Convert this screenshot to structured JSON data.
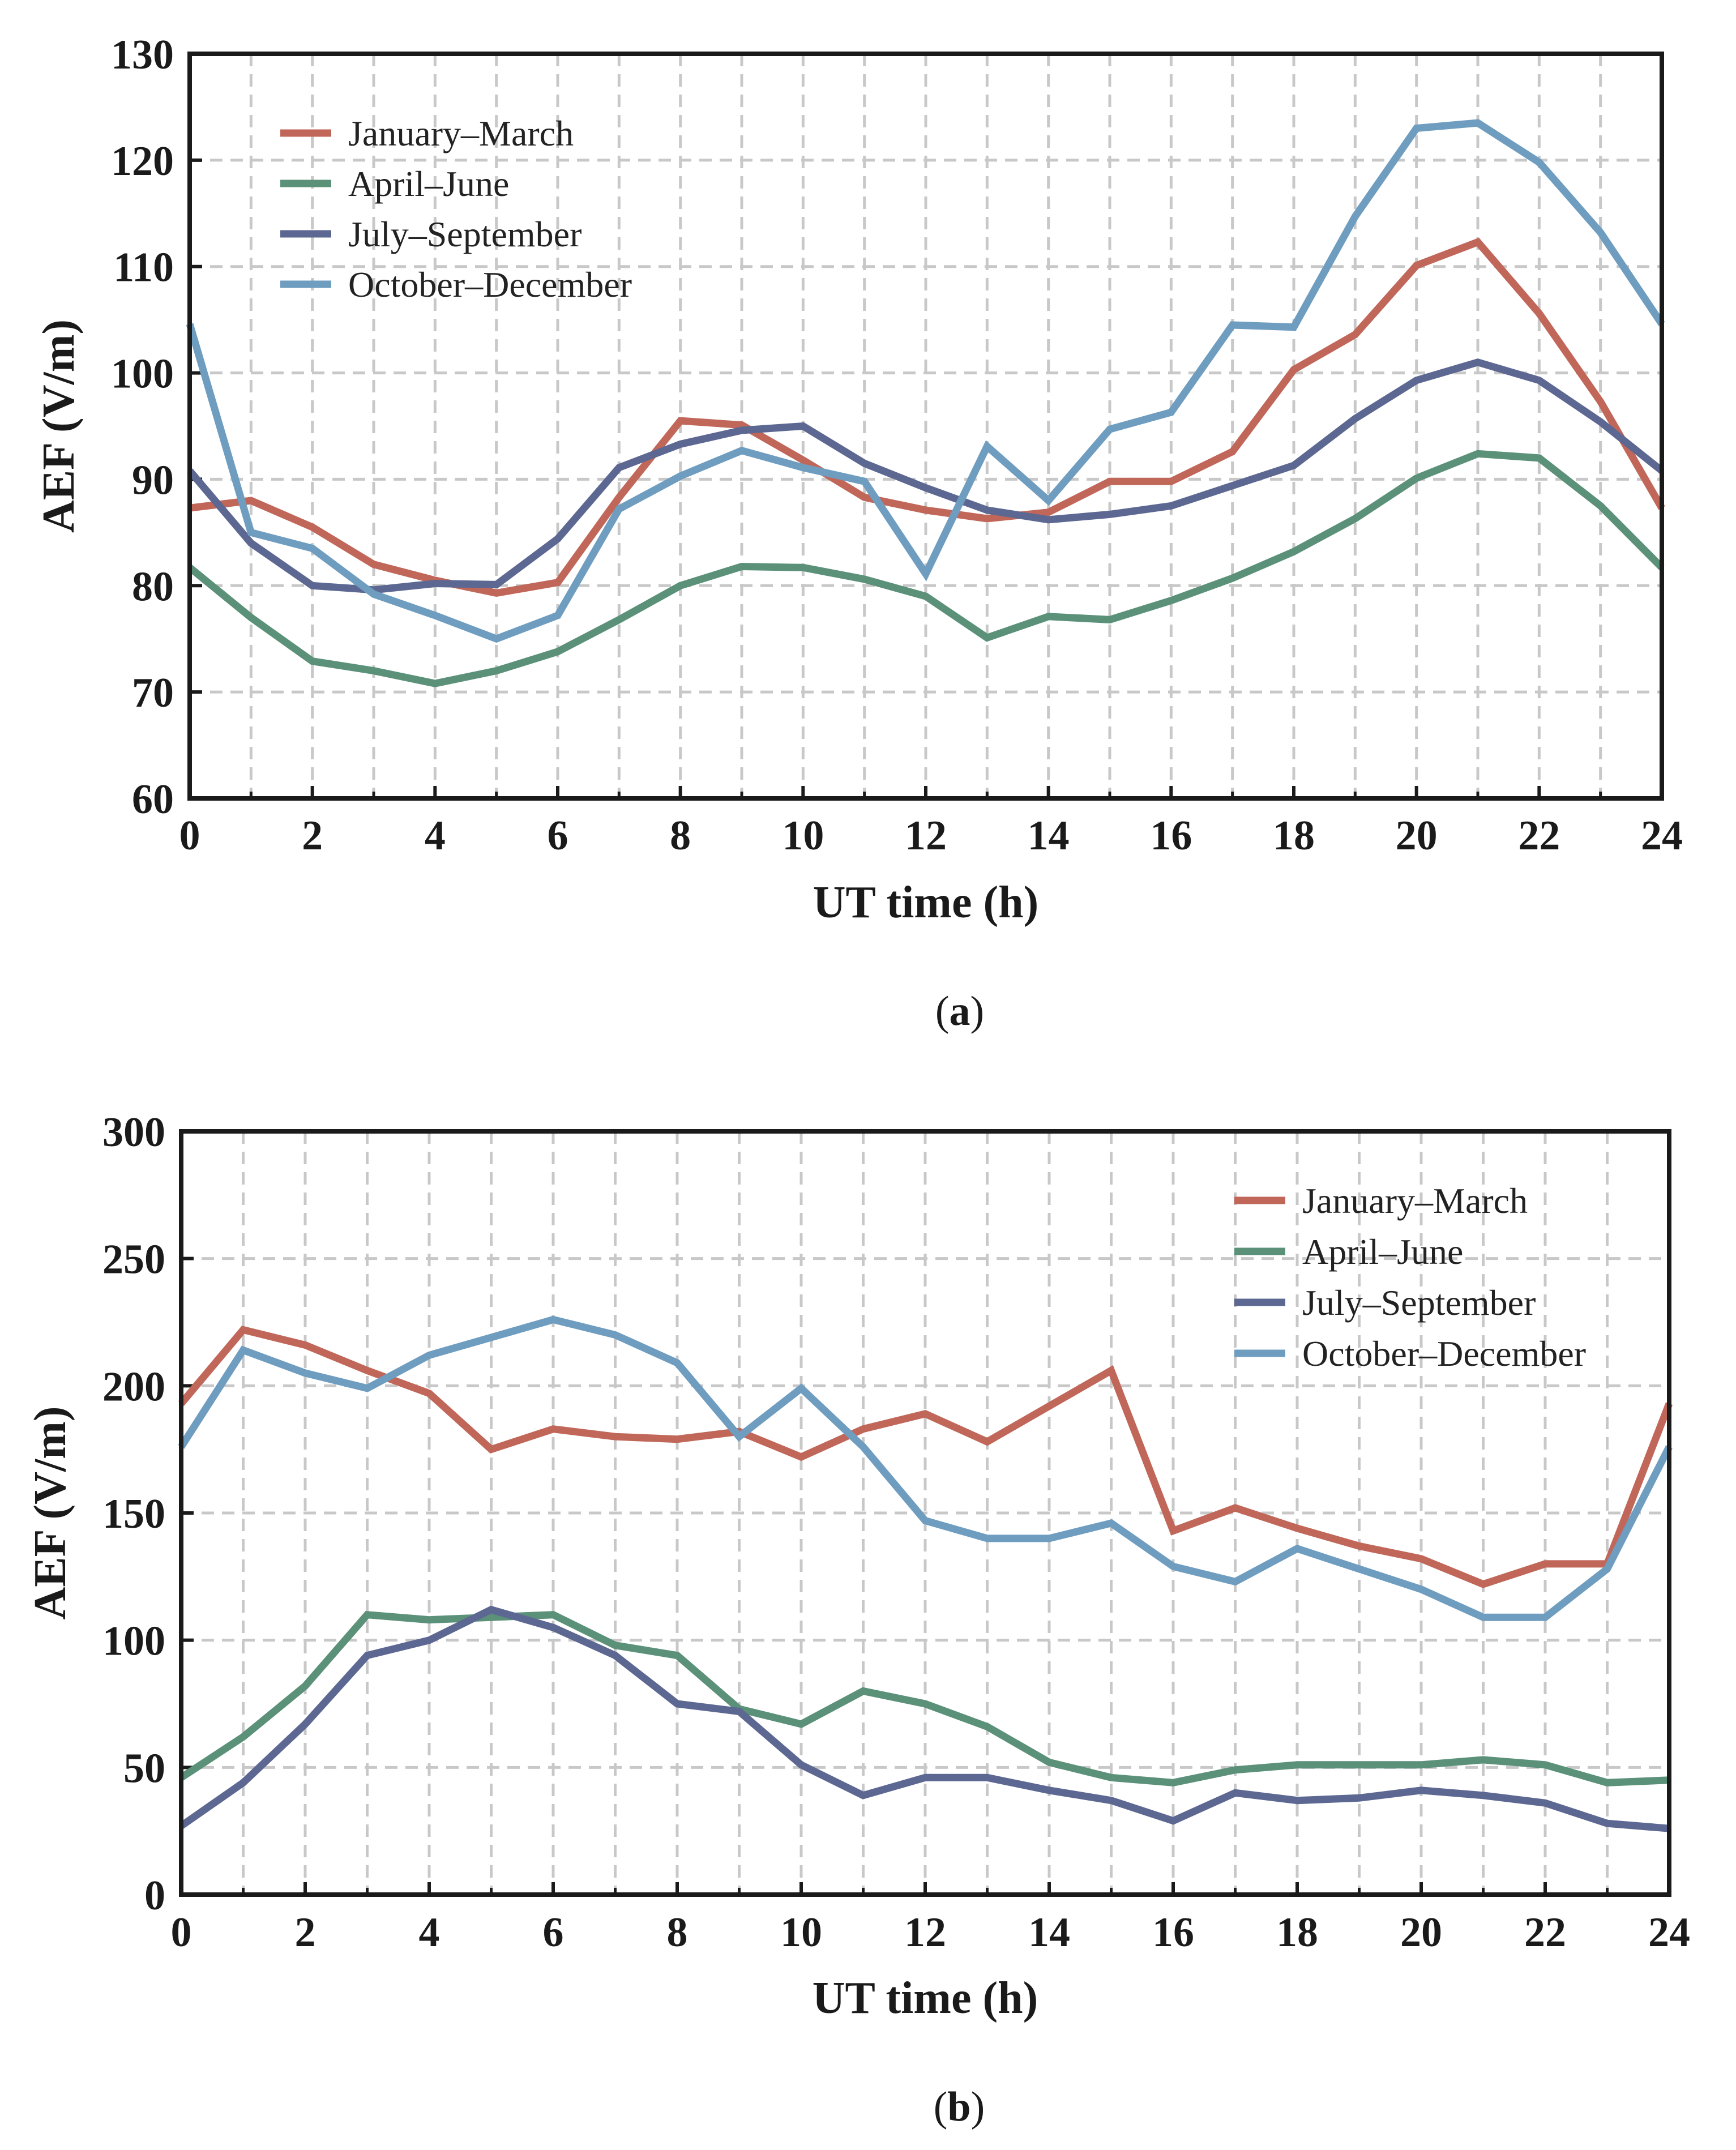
{
  "chart_data": [
    {
      "type": "line",
      "panel_label": "a",
      "caption_open": "(",
      "caption_close": ")",
      "xlabel": "UT time (h)",
      "ylabel": "AEF (V/m)",
      "xlim": [
        0,
        24
      ],
      "ylim": [
        60,
        130
      ],
      "xticks": [
        0,
        2,
        4,
        6,
        8,
        10,
        12,
        14,
        16,
        18,
        20,
        22,
        24
      ],
      "yticks": [
        60,
        70,
        80,
        90,
        100,
        110,
        120,
        130
      ],
      "grid": true,
      "legend_position": "top-left",
      "x": [
        0,
        1,
        2,
        3,
        4,
        5,
        6,
        7,
        8,
        9,
        10,
        11,
        12,
        13,
        14,
        15,
        16,
        17,
        18,
        19,
        20,
        21,
        22,
        23,
        24
      ],
      "series": [
        {
          "name": "January–March",
          "color": "#c0675a",
          "values": [
            87.3,
            88.0,
            85.5,
            82.0,
            80.5,
            79.3,
            80.3,
            88.3,
            95.5,
            95.1,
            91.8,
            88.3,
            87.1,
            86.3,
            86.9,
            89.8,
            89.8,
            92.6,
            100.3,
            103.6,
            110.1,
            112.3,
            105.6,
            97.3,
            87.3
          ]
        },
        {
          "name": "April–June",
          "color": "#5b9079",
          "values": [
            81.7,
            77.0,
            72.9,
            72.0,
            70.8,
            72.0,
            73.8,
            76.8,
            80.0,
            81.8,
            81.7,
            80.6,
            79.0,
            75.1,
            77.1,
            76.8,
            78.6,
            80.7,
            83.2,
            86.3,
            90.1,
            92.4,
            92.0,
            87.5,
            81.7
          ]
        },
        {
          "name": "July–September",
          "color": "#5d6892",
          "values": [
            90.8,
            84.0,
            80.0,
            79.6,
            80.2,
            80.1,
            84.4,
            91.1,
            93.3,
            94.6,
            95.0,
            91.5,
            89.2,
            87.1,
            86.2,
            86.7,
            87.5,
            89.4,
            91.3,
            95.7,
            99.3,
            101.0,
            99.3,
            95.4,
            90.8
          ]
        },
        {
          "name": "October–December",
          "color": "#6f9dc0",
          "values": [
            104.6,
            85.0,
            83.5,
            79.2,
            77.2,
            75.0,
            77.2,
            87.2,
            90.3,
            92.7,
            91.1,
            89.8,
            81.1,
            93.1,
            88.0,
            94.7,
            96.3,
            104.5,
            104.3,
            114.7,
            123.0,
            123.5,
            119.8,
            113.2,
            104.6
          ]
        }
      ]
    },
    {
      "type": "line",
      "panel_label": "b",
      "caption_open": "(",
      "caption_close": ")",
      "xlabel": "UT time (h)",
      "ylabel": "AEF (V/m)",
      "xlim": [
        0,
        24
      ],
      "ylim": [
        0,
        300
      ],
      "xticks": [
        0,
        2,
        4,
        6,
        8,
        10,
        12,
        14,
        16,
        18,
        20,
        22,
        24
      ],
      "yticks": [
        0,
        50,
        100,
        150,
        200,
        250,
        300
      ],
      "grid": true,
      "legend_position": "top-right",
      "x": [
        0,
        1,
        2,
        3,
        4,
        5,
        6,
        7,
        8,
        9,
        10,
        11,
        12,
        13,
        14,
        15,
        16,
        17,
        18,
        19,
        20,
        21,
        22,
        23,
        24
      ],
      "series": [
        {
          "name": "January–March",
          "color": "#c0675a",
          "values": [
            193,
            222,
            216,
            206,
            197,
            175,
            183,
            180,
            179,
            182,
            172,
            183,
            189,
            178,
            192,
            206,
            143,
            152,
            144,
            137,
            132,
            122,
            130,
            130,
            193
          ]
        },
        {
          "name": "April–June",
          "color": "#5b9079",
          "values": [
            46,
            62,
            82,
            110,
            108,
            109,
            110,
            98,
            94,
            73,
            67,
            80,
            75,
            66,
            52,
            46,
            44,
            49,
            51,
            51,
            51,
            53,
            51,
            44,
            45
          ]
        },
        {
          "name": "July–September",
          "color": "#5d6892",
          "values": [
            27,
            44,
            67,
            94,
            100,
            112,
            105,
            94,
            75,
            72,
            51,
            39,
            46,
            46,
            41,
            37,
            29,
            40,
            37,
            38,
            41,
            39,
            36,
            28,
            26
          ]
        },
        {
          "name": "October–December",
          "color": "#6f9dc0",
          "values": [
            176,
            214,
            205,
            199,
            212,
            219,
            226,
            220,
            209,
            180,
            199,
            176,
            147,
            140,
            140,
            146,
            129,
            123,
            136,
            128,
            120,
            109,
            109,
            128,
            176
          ]
        }
      ]
    }
  ]
}
